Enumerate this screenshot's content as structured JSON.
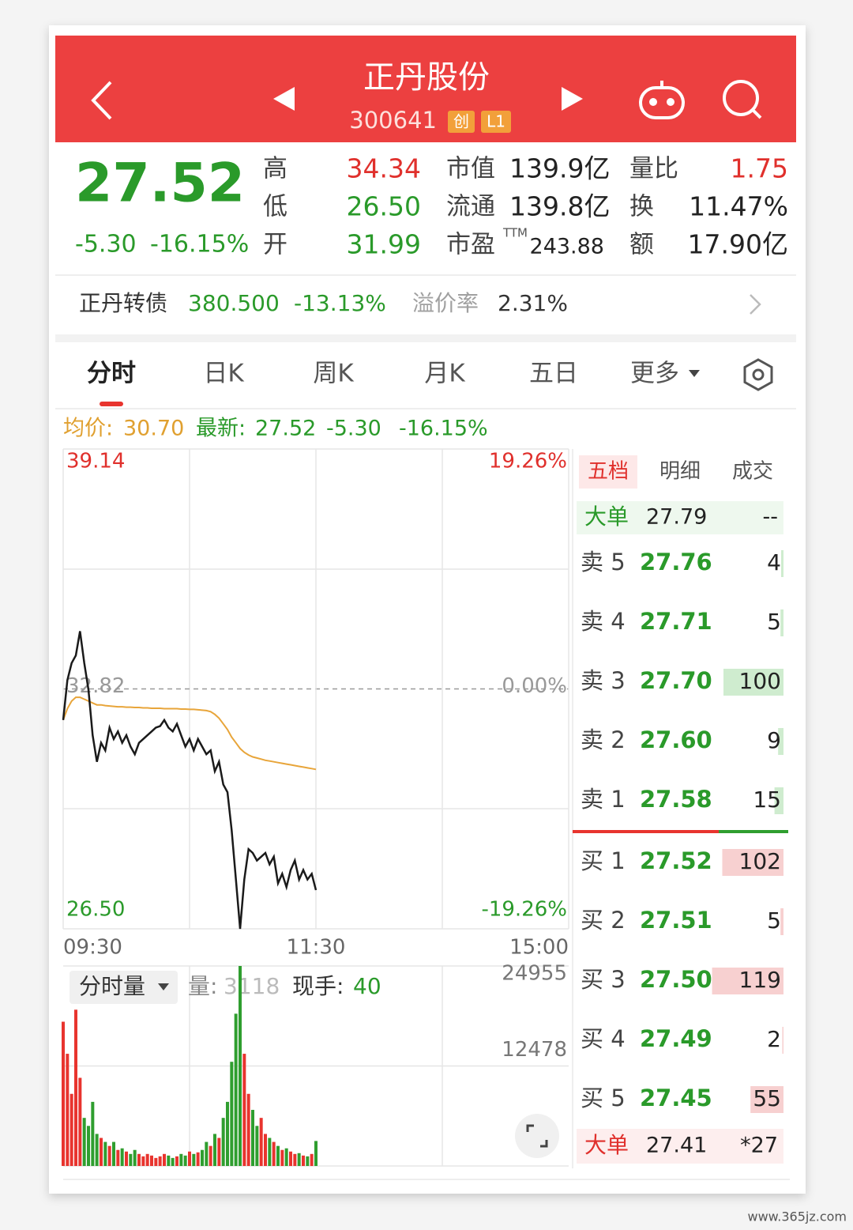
{
  "header": {
    "title": "正丹股份",
    "code": "300641",
    "badges": [
      "创",
      "L1"
    ]
  },
  "quote": {
    "price": "27.52",
    "change": "-5.30",
    "change_pct": "-16.15%",
    "stats": [
      [
        {
          "label": "高",
          "value": "34.34",
          "color": "#e0302c"
        },
        {
          "label": "市值",
          "value": "139.9亿",
          "color": "#222222"
        },
        {
          "label": "量比",
          "value": "1.75",
          "color": "#e0302c"
        }
      ],
      [
        {
          "label": "低",
          "value": "26.50",
          "color": "#2a9a2a"
        },
        {
          "label": "流通",
          "value": "139.8亿",
          "color": "#222222"
        },
        {
          "label": "换",
          "value": "11.47%",
          "color": "#222222"
        }
      ],
      [
        {
          "label": "开",
          "value": "31.99",
          "color": "#2a9a2a"
        },
        {
          "label": "市盈",
          "sup": "TTM",
          "value": "243.88",
          "color": "#222222"
        },
        {
          "label": "额",
          "value": "17.90亿",
          "color": "#222222"
        }
      ]
    ]
  },
  "bond": {
    "name": "正丹转债",
    "price": "380.500",
    "change_pct": "-13.13%",
    "premium_label": "溢价率",
    "premium": "2.31%"
  },
  "tabs": [
    "分时",
    "日K",
    "周K",
    "月K",
    "五日",
    "更多"
  ],
  "legend": {
    "avg_label": "均价:",
    "avg": "30.70",
    "last_label": "最新:",
    "last": "27.52",
    "change": "-5.30",
    "change_pct": "-16.15%"
  },
  "volume_info": {
    "selector": "分时量",
    "vol_label": "量:",
    "vol": "3118",
    "hand_label": "现手:",
    "hand": "40"
  },
  "order_book": {
    "tabs": [
      "五档",
      "明细",
      "成交"
    ],
    "big_sell": {
      "label": "大单",
      "price": "27.79",
      "qty": "--"
    },
    "asks": [
      {
        "label": "卖 5",
        "price": "27.76",
        "qty": 4
      },
      {
        "label": "卖 4",
        "price": "27.71",
        "qty": 5
      },
      {
        "label": "卖 3",
        "price": "27.70",
        "qty": 100
      },
      {
        "label": "卖 2",
        "price": "27.60",
        "qty": 9
      },
      {
        "label": "卖 1",
        "price": "27.58",
        "qty": 15
      }
    ],
    "bids": [
      {
        "label": "买 1",
        "price": "27.52",
        "qty": 102
      },
      {
        "label": "买 2",
        "price": "27.51",
        "qty": 5
      },
      {
        "label": "买 3",
        "price": "27.50",
        "qty": 119
      },
      {
        "label": "买 4",
        "price": "27.49",
        "qty": 2
      },
      {
        "label": "买 5",
        "price": "27.45",
        "qty": 55
      }
    ],
    "big_buy": {
      "label": "大单",
      "price": "27.41",
      "qty": "*27"
    }
  },
  "watermark": "www.365jz.com",
  "chart_data": [
    {
      "type": "line",
      "x": [
        0,
        2,
        4,
        6,
        8,
        10,
        12,
        14,
        16,
        18,
        20,
        22,
        24,
        26,
        28,
        30,
        32,
        34,
        36,
        38,
        40,
        42,
        44,
        46,
        48,
        50,
        52,
        54,
        56,
        58,
        60,
        62,
        64,
        66,
        68,
        70,
        72,
        74,
        76,
        78,
        80,
        82,
        84,
        86,
        88,
        90,
        92,
        94,
        96,
        98,
        100,
        102,
        104,
        106,
        108,
        110,
        112,
        114,
        116,
        118,
        120
      ],
      "xlim": [
        0,
        240
      ],
      "xticks": [
        {
          "value": 0,
          "label": "09:30"
        },
        {
          "value": 120,
          "label": "11:30"
        },
        {
          "value": 240,
          "label": "15:00"
        }
      ],
      "ylim": [
        26.5,
        39.14
      ],
      "yticks": [
        {
          "value": 26.5,
          "label": "26.50"
        },
        32.82,
        39.14
      ],
      "y2lim": [
        -19.26,
        19.26
      ],
      "y2ticks": [
        {
          "value": -19.26,
          "label": "-19.26%"
        },
        {
          "value": 0,
          "label": "0.00%"
        },
        {
          "value": 19.26,
          "label": "19.26%"
        }
      ],
      "series": [
        {
          "color": "#1a1a1a",
          "values": [
            32.0,
            33.05,
            33.5,
            33.7,
            34.34,
            33.5,
            32.8,
            31.6,
            30.9,
            31.4,
            31.2,
            31.8,
            31.5,
            31.7,
            31.4,
            31.6,
            31.3,
            31.1,
            31.4,
            31.5,
            31.6,
            31.7,
            31.8,
            31.84,
            32.0,
            31.8,
            31.7,
            31.9,
            31.6,
            31.3,
            31.5,
            31.2,
            31.5,
            31.3,
            31.1,
            31.2,
            30.65,
            30.9,
            30.3,
            30.1,
            29.1,
            27.8,
            26.5,
            27.8,
            28.6,
            28.5,
            28.3,
            28.4,
            28.5,
            28.2,
            28.4,
            27.7,
            27.95,
            27.6,
            28.05,
            28.3,
            27.8,
            28.05,
            27.8,
            27.95,
            27.52
          ]
        },
        {
          "color": "#e8a53a",
          "values": [
            32.0,
            32.3,
            32.5,
            32.6,
            32.6,
            32.55,
            32.5,
            32.45,
            32.4,
            32.4,
            32.38,
            32.37,
            32.36,
            32.35,
            32.35,
            32.34,
            32.34,
            32.33,
            32.33,
            32.32,
            32.32,
            32.31,
            32.31,
            32.31,
            32.3,
            32.3,
            32.3,
            32.3,
            32.29,
            32.29,
            32.28,
            32.28,
            32.27,
            32.26,
            32.25,
            32.22,
            32.15,
            32.05,
            31.9,
            31.75,
            31.55,
            31.4,
            31.25,
            31.15,
            31.08,
            31.03,
            31.0,
            30.97,
            30.94,
            30.92,
            30.9,
            30.88,
            30.86,
            30.84,
            30.82,
            30.8,
            30.78,
            30.76,
            30.74,
            30.72,
            30.7
          ]
        }
      ]
    },
    {
      "type": "bar",
      "x": [
        0,
        2,
        4,
        6,
        8,
        10,
        12,
        14,
        16,
        18,
        20,
        22,
        24,
        26,
        28,
        30,
        32,
        34,
        36,
        38,
        40,
        42,
        44,
        46,
        48,
        50,
        52,
        54,
        56,
        58,
        60,
        62,
        64,
        66,
        68,
        70,
        72,
        74,
        76,
        78,
        80,
        82,
        84,
        86,
        88,
        90,
        92,
        94,
        96,
        98,
        100,
        102,
        104,
        106,
        108,
        110,
        112,
        114,
        116,
        118,
        120
      ],
      "xlim": [
        0,
        240
      ],
      "ylim": [
        0,
        24955
      ],
      "yticks": [
        12478,
        24955
      ],
      "series": [
        {
          "values": [
            18000,
            14000,
            9000,
            19500,
            11000,
            6000,
            5000,
            8000,
            4000,
            3500,
            3000,
            2500,
            3000,
            2000,
            2200,
            1800,
            1500,
            2000,
            1500,
            1200,
            1500,
            1300,
            1000,
            1200,
            1500,
            1300,
            1000,
            1200,
            1500,
            1300,
            1800,
            1500,
            1700,
            2000,
            3000,
            2500,
            4000,
            3500,
            6000,
            8000,
            13000,
            19000,
            24955,
            14000,
            9000,
            7000,
            5000,
            6000,
            4000,
            3500,
            3000,
            2500,
            2000,
            2200,
            1800,
            1500,
            1600,
            1300,
            1200,
            1500,
            3118
          ],
          "colors": [
            "#e8342e",
            "#e8342e",
            "#e8342e",
            "#e8342e",
            "#e8342e",
            "#2f9e2f",
            "#2f9e2f",
            "#2f9e2f",
            "#2f9e2f",
            "#e8342e",
            "#2f9e2f",
            "#e8342e",
            "#2f9e2f",
            "#e8342e",
            "#2f9e2f",
            "#e8342e",
            "#2f9e2f",
            "#2f9e2f",
            "#e8342e",
            "#e8342e",
            "#e8342e",
            "#e8342e",
            "#e8342e",
            "#e8342e",
            "#e8342e",
            "#2f9e2f",
            "#2f9e2f",
            "#e8342e",
            "#2f9e2f",
            "#2f9e2f",
            "#e8342e",
            "#2f9e2f",
            "#e8342e",
            "#2f9e2f",
            "#2f9e2f",
            "#e8342e",
            "#2f9e2f",
            "#e8342e",
            "#2f9e2f",
            "#2f9e2f",
            "#2f9e2f",
            "#2f9e2f",
            "#2f9e2f",
            "#e8342e",
            "#e8342e",
            "#2f9e2f",
            "#2f9e2f",
            "#e8342e",
            "#e8342e",
            "#2f9e2f",
            "#e8342e",
            "#2f9e2f",
            "#e8342e",
            "#2f9e2f",
            "#e8342e",
            "#e8342e",
            "#2f9e2f",
            "#e8342e",
            "#2f9e2f",
            "#e8342e",
            "#2f9e2f"
          ]
        }
      ]
    }
  ]
}
